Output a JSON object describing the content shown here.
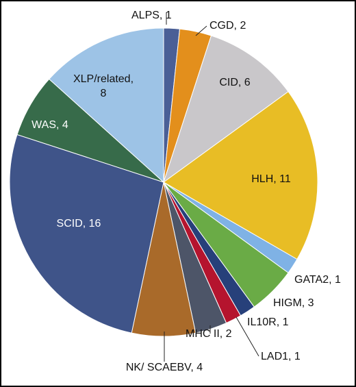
{
  "chart_data": {
    "type": "pie",
    "start_angle_deg": 0,
    "direction": "clockwise",
    "slices": [
      {
        "label": "ALPS, 1",
        "value": 1,
        "color": "#4a5f96"
      },
      {
        "label": "CGD, 2",
        "value": 2,
        "color": "#e38f1c"
      },
      {
        "label": "CID, 6",
        "value": 6,
        "color": "#c9c7ca"
      },
      {
        "label": "HLH, 11",
        "value": 11,
        "color": "#e8bd25"
      },
      {
        "label": "GATA2, 1",
        "value": 1,
        "color": "#7fb2e5"
      },
      {
        "label": "HIGM, 3",
        "value": 3,
        "color": "#6aab46"
      },
      {
        "label": "IL10R, 1",
        "value": 1,
        "color": "#27407a"
      },
      {
        "label": "LAD1, 1",
        "value": 1,
        "color": "#b5142e"
      },
      {
        "label": "MHC II, 2",
        "value": 2,
        "color": "#4d5568"
      },
      {
        "label": "NK/ SCAEBV, 4",
        "value": 4,
        "color": "#a96a2a"
      },
      {
        "label": "SCID, 16",
        "value": 16,
        "color": "#3f5489"
      },
      {
        "label": "WAS, 4",
        "value": 4,
        "color": "#376b4a"
      },
      {
        "label": "XLP/related,\n8",
        "value": 8,
        "color": "#9dc3e6"
      }
    ]
  }
}
